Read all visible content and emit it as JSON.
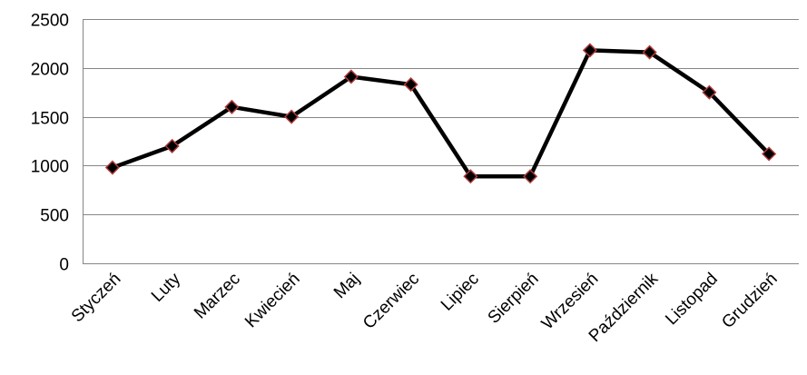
{
  "chart_data": {
    "type": "line",
    "title": "",
    "xlabel": "",
    "ylabel": "",
    "categories": [
      "Styczeń",
      "Luty",
      "Marzec",
      "Kwiecień",
      "Maj",
      "Czerwiec",
      "Lipiec",
      "Sierpień",
      "Wrzesień",
      "Październik",
      "Listopad",
      "Grudzień"
    ],
    "series": [
      {
        "values": [
          980,
          1200,
          1600,
          1500,
          1910,
          1830,
          890,
          890,
          2180,
          2160,
          1750,
          1120
        ]
      }
    ],
    "ylim": [
      0,
      2500
    ],
    "yticks": [
      0,
      500,
      1000,
      1500,
      2000,
      2500
    ],
    "grid": "horizontal",
    "legend": "none",
    "colors": {
      "line": "#000000",
      "marker_fill": "#000000",
      "marker_edge": "#b03a3a",
      "grid": "#868686"
    },
    "marker": "diamond"
  }
}
